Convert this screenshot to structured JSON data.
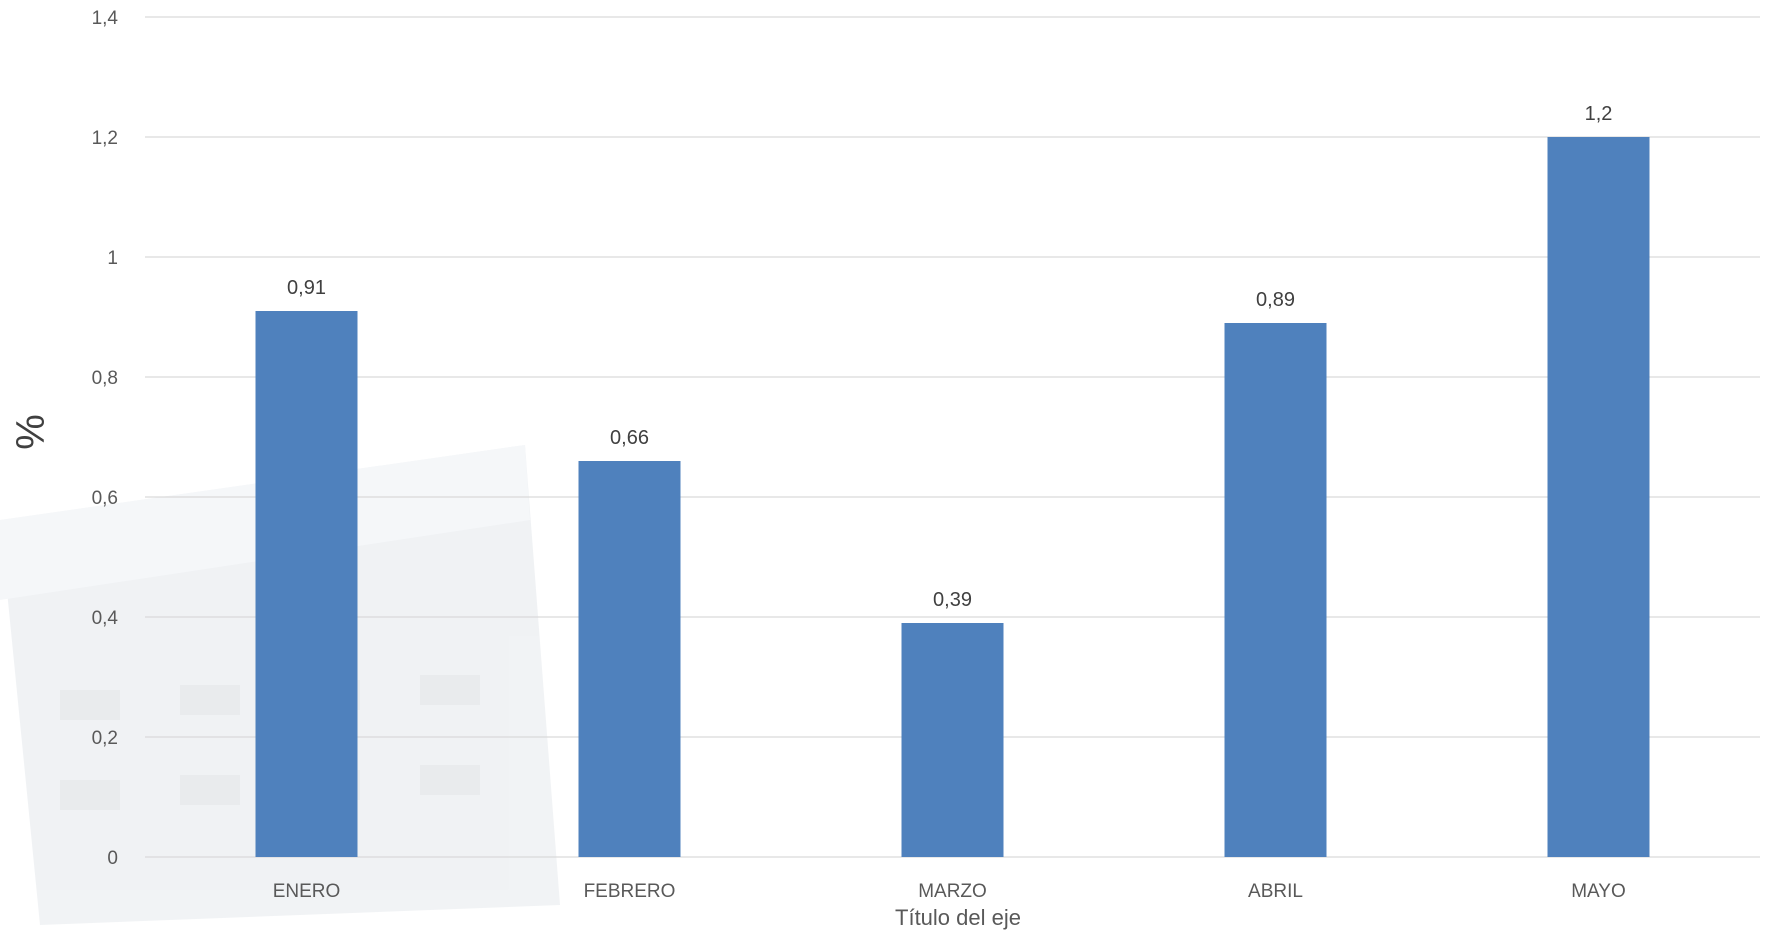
{
  "colors": {
    "bar": "#4f81bd",
    "gridline": "#d9d9d9",
    "background": "#ffffff"
  },
  "chart_data": {
    "type": "bar",
    "title": "",
    "xlabel": "Título del eje",
    "ylabel": "%",
    "categories": [
      "ENERO",
      "FEBRERO",
      "MARZO",
      "ABRIL",
      "MAYO"
    ],
    "values": [
      0.91,
      0.66,
      0.39,
      0.89,
      1.2
    ],
    "value_labels": [
      "0,91",
      "0,66",
      "0,39",
      "0,89",
      "1,2"
    ],
    "ylim": [
      0,
      1.4
    ],
    "yticks": [
      0,
      0.2,
      0.4,
      0.6,
      0.8,
      1,
      1.2,
      1.4
    ],
    "ytick_labels": [
      "0",
      "0,2",
      "0,4",
      "0,6",
      "0,8",
      "1",
      "1,2",
      "1,4"
    ],
    "grid": true,
    "legend": "none"
  }
}
